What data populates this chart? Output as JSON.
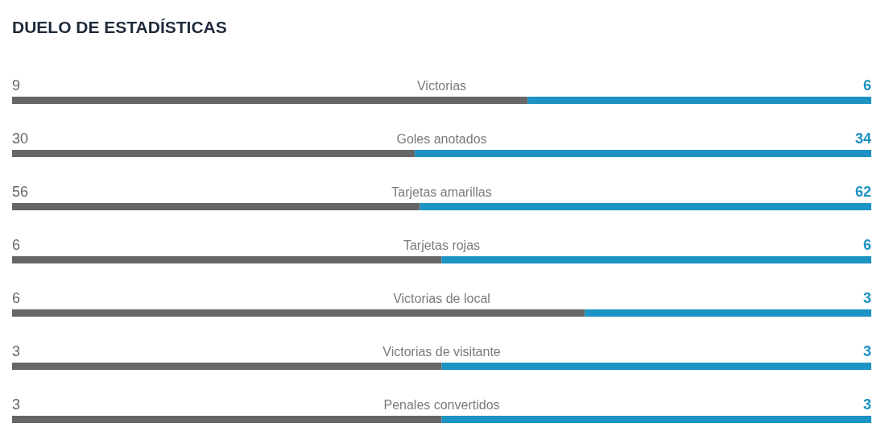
{
  "chart_data": [
    {
      "type": "bar",
      "title": "DUELO DE ESTADÍSTICAS",
      "orientation": "horizontal",
      "stacked": true,
      "data_labels": true,
      "categories": [
        "Victorias"
      ],
      "series": [
        {
          "color": "#666666",
          "values": [
            9
          ]
        },
        {
          "color": "#1c93c2",
          "values": [
            6
          ]
        }
      ]
    },
    {
      "type": "bar",
      "orientation": "horizontal",
      "stacked": true,
      "data_labels": true,
      "categories": [
        "Goles anotados"
      ],
      "series": [
        {
          "color": "#666666",
          "values": [
            30
          ]
        },
        {
          "color": "#1c93c2",
          "values": [
            34
          ]
        }
      ]
    },
    {
      "type": "bar",
      "orientation": "horizontal",
      "stacked": true,
      "data_labels": true,
      "categories": [
        "Tarjetas amarillas"
      ],
      "series": [
        {
          "color": "#666666",
          "values": [
            56
          ]
        },
        {
          "color": "#1c93c2",
          "values": [
            62
          ]
        }
      ]
    },
    {
      "type": "bar",
      "orientation": "horizontal",
      "stacked": true,
      "data_labels": true,
      "categories": [
        "Tarjetas rojas"
      ],
      "series": [
        {
          "color": "#666666",
          "values": [
            6
          ]
        },
        {
          "color": "#1c93c2",
          "values": [
            6
          ]
        }
      ]
    },
    {
      "type": "bar",
      "orientation": "horizontal",
      "stacked": true,
      "data_labels": true,
      "categories": [
        "Victorias de local"
      ],
      "series": [
        {
          "color": "#666666",
          "values": [
            6
          ]
        },
        {
          "color": "#1c93c2",
          "values": [
            3
          ]
        }
      ]
    },
    {
      "type": "bar",
      "orientation": "horizontal",
      "stacked": true,
      "data_labels": true,
      "categories": [
        "Victorias de visitante"
      ],
      "series": [
        {
          "color": "#666666",
          "values": [
            3
          ]
        },
        {
          "color": "#1c93c2",
          "values": [
            3
          ]
        }
      ]
    },
    {
      "type": "bar",
      "orientation": "horizontal",
      "stacked": true,
      "data_labels": true,
      "categories": [
        "Penales convertidos"
      ],
      "series": [
        {
          "color": "#666666",
          "values": [
            3
          ]
        },
        {
          "color": "#1c93c2",
          "values": [
            3
          ]
        }
      ]
    }
  ]
}
